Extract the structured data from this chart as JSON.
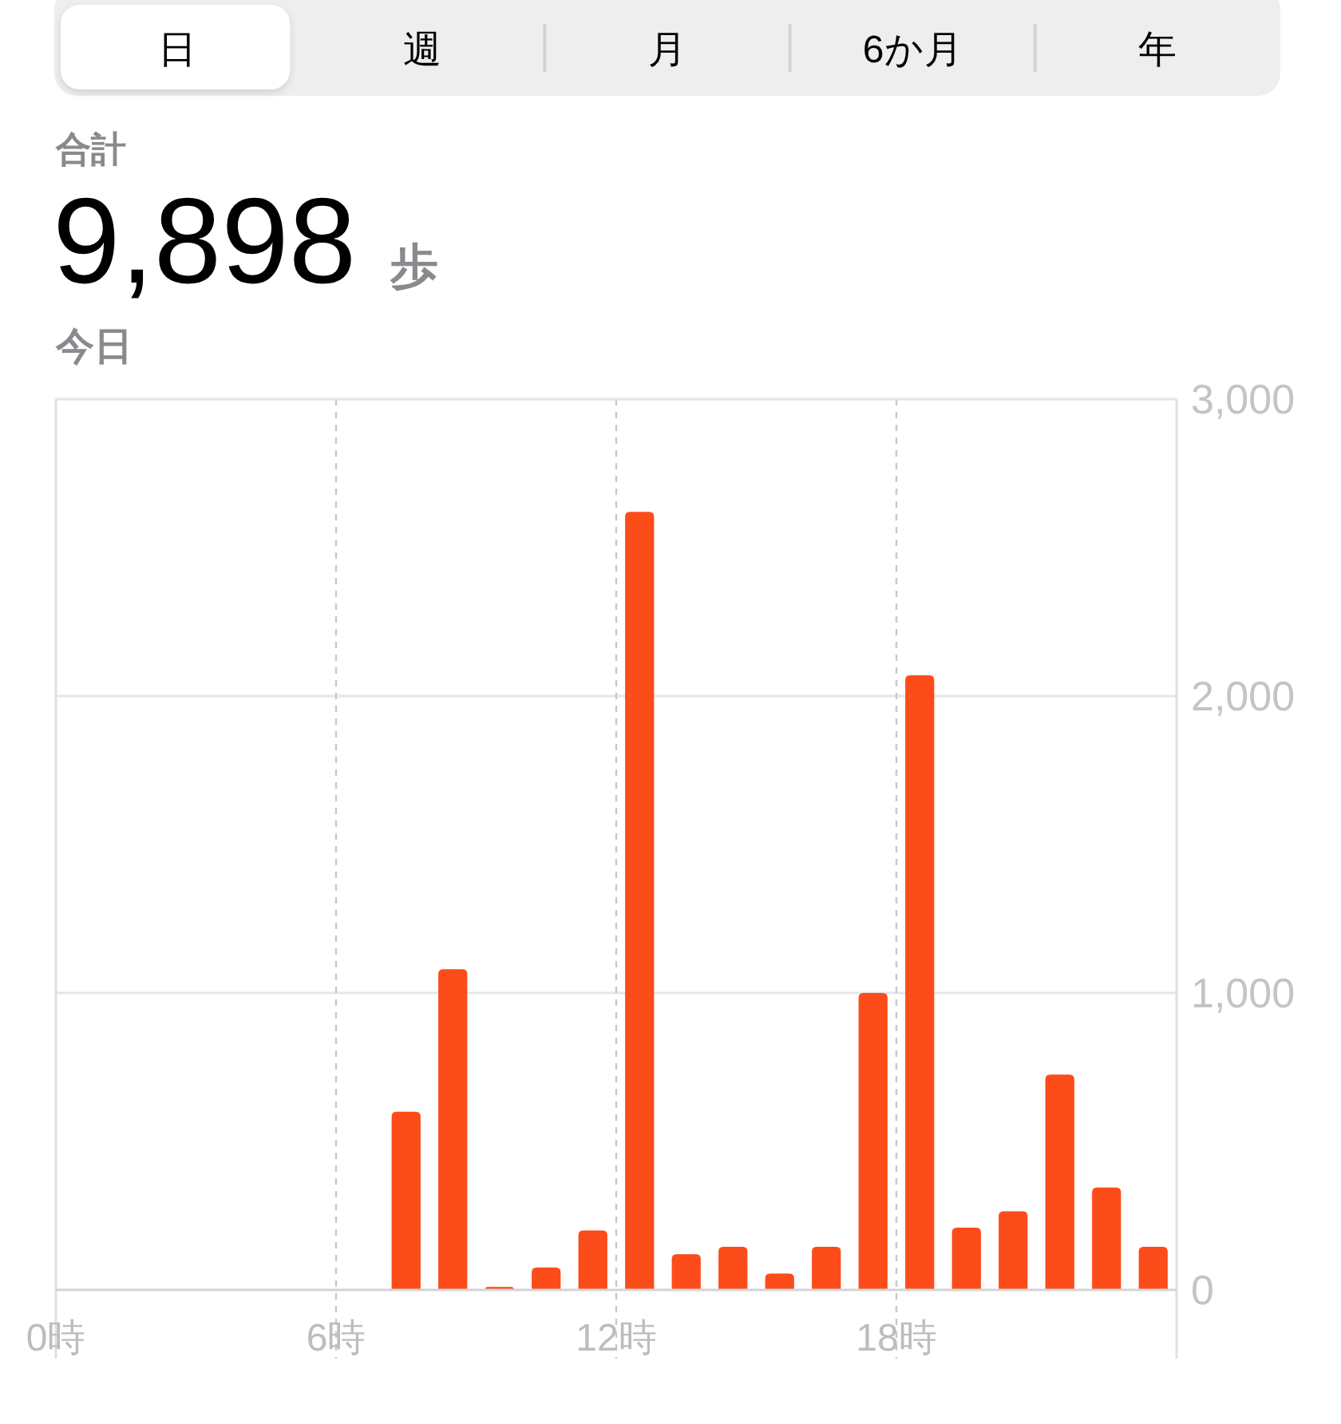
{
  "chart_data": [
    {
      "type": "other",
      "annotations": [
        "日",
        "週",
        "月",
        "6か月",
        "年"
      ]
    },
    {
      "type": "bar",
      "annotations": [
        "合計"
      ],
      "title": "9,898 歩",
      "subtitle": "今日",
      "x": [
        7.5,
        8.5,
        9.5,
        10.5,
        11.5,
        12.5,
        13.5,
        14.5,
        15.5,
        16.5,
        17.5,
        18.5,
        19.5,
        20.5,
        21.5,
        22.5,
        23.5
      ],
      "series": [
        {
          "color": "#fc4c1a",
          "values": [
            600,
            1080,
            10,
            75,
            200,
            2620,
            120,
            145,
            55,
            145,
            1000,
            2070,
            210,
            265,
            725,
            345,
            145
          ]
        }
      ],
      "xlim": [
        0,
        24
      ],
      "xticks": [
        {
          "value": 0,
          "label": "0時"
        },
        {
          "value": 6,
          "label": "6時"
        },
        {
          "value": 12,
          "label": "12時"
        },
        {
          "value": 18,
          "label": "18時"
        }
      ],
      "ylim": [
        0,
        3000
      ],
      "yticks": [
        0,
        {
          "value": 1000,
          "label": "1,000"
        },
        {
          "value": 2000,
          "label": "2,000"
        },
        {
          "value": 3000,
          "label": "3,000"
        }
      ],
      "grid": true
    }
  ]
}
